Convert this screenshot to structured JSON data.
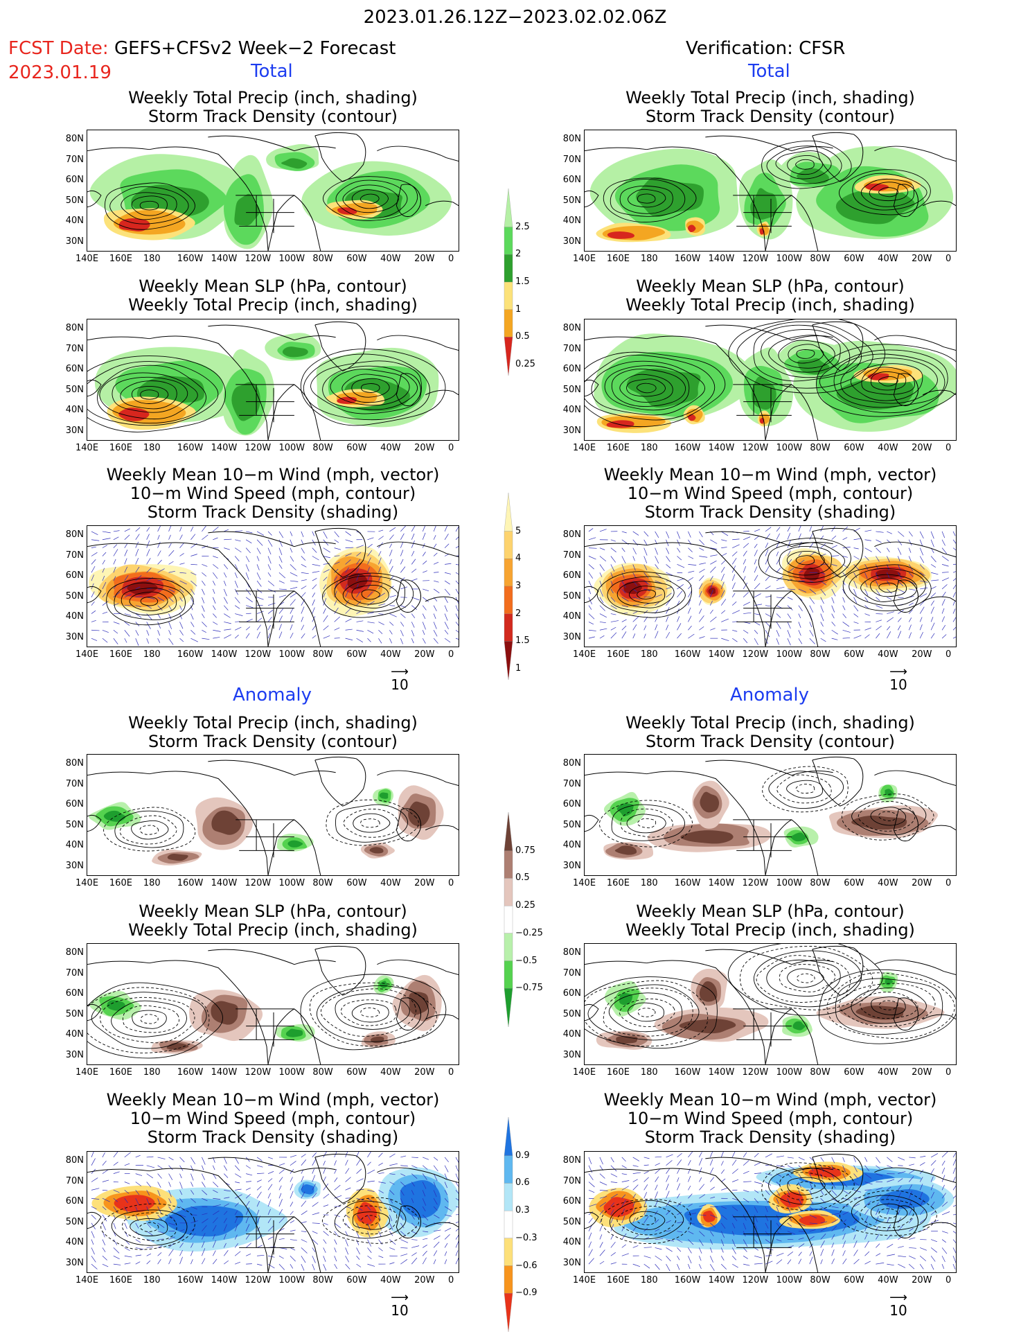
{
  "header": {
    "date_range": "2023.01.26.12Z−2023.02.02.06Z",
    "fcst_label": "FCST Date:",
    "fcst_model": "GEFS+CFSv2 Week−2 Forecast",
    "fcst_date": "2023.01.19",
    "verification": "Verification: CFSR"
  },
  "sections": {
    "total": "Total",
    "anomaly": "Anomaly"
  },
  "panel_titles": {
    "precip_track": [
      "Weekly Total Precip (inch, shading)",
      "Storm Track Density (contour)"
    ],
    "slp_precip": [
      "Weekly Mean SLP (hPa, contour)",
      "Weekly Total Precip (inch, shading)"
    ],
    "wind_track": [
      "Weekly Mean 10−m Wind (mph, vector)",
      "10−m Wind Speed (mph, contour)",
      "Storm Track Density (shading)"
    ]
  },
  "axes": {
    "lat_labels": [
      "80N",
      "70N",
      "60N",
      "50N",
      "40N",
      "30N"
    ],
    "lon_labels": [
      "140E",
      "160E",
      "180",
      "160W",
      "140W",
      "120W",
      "100W",
      "80W",
      "60W",
      "40W",
      "20W",
      "0"
    ]
  },
  "vector_ref": "10",
  "colorbars": {
    "precip_total": {
      "labels": [
        "2.5",
        "2",
        "1.5",
        "1",
        "0.5",
        "0.25"
      ],
      "colors": [
        "#d7261e",
        "#f4a622",
        "#fce27a",
        "#2ea02e",
        "#5cd95c",
        "#b5f0a5"
      ]
    },
    "track_total": {
      "labels": [
        "5",
        "4",
        "3",
        "2",
        "1.5",
        "1"
      ],
      "colors": [
        "#8c0f0f",
        "#d22a1e",
        "#f26d1d",
        "#f7a431",
        "#fdd36e",
        "#fef5b5"
      ]
    },
    "precip_anom": {
      "labels": [
        "0.75",
        "0.5",
        "0.25",
        "−0.25",
        "−0.5",
        "−0.75"
      ],
      "colors": [
        "#1e9e2e",
        "#55d24f",
        "#b8f0ab",
        "#ffffff",
        "#e4c6bd",
        "#ad7f72",
        "#6e4236"
      ]
    },
    "track_anom": {
      "labels": [
        "0.9",
        "0.6",
        "0.3",
        "−0.3",
        "−0.6",
        "−0.9"
      ],
      "colors": [
        "#e8331a",
        "#f7941d",
        "#fde07a",
        "#ffffff",
        "#b2e6f7",
        "#5fb8f0",
        "#1f74e0"
      ]
    }
  },
  "colors": {
    "contour": "#000000",
    "vector": "#2a2ab8",
    "coast": "#000000"
  }
}
